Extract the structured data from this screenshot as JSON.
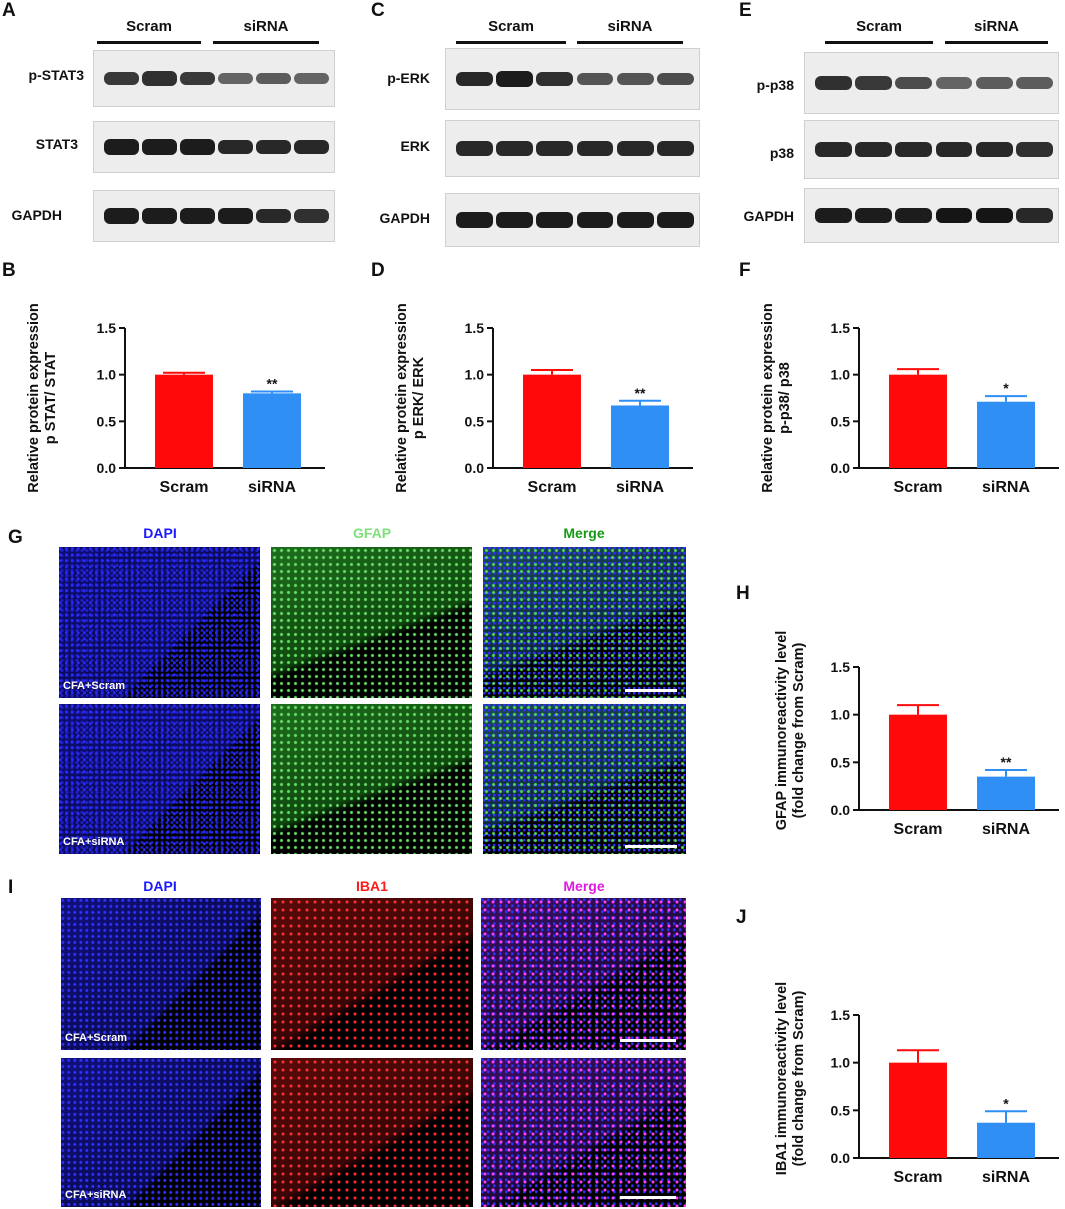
{
  "panel_letters": {
    "A": "A",
    "B": "B",
    "C": "C",
    "D": "D",
    "E": "E",
    "F": "F",
    "G": "G",
    "H": "H",
    "I": "I",
    "J": "J"
  },
  "groups": {
    "scram": "Scram",
    "sirna": "siRNA"
  },
  "blots": {
    "A": {
      "labels": [
        "p-STAT3",
        "STAT3",
        "GAPDH"
      ],
      "intensity": [
        [
          0.75,
          0.8,
          0.75,
          0.5,
          0.55,
          0.5
        ],
        [
          0.9,
          0.9,
          0.9,
          0.85,
          0.85,
          0.85
        ],
        [
          0.9,
          0.9,
          0.9,
          0.9,
          0.85,
          0.8
        ]
      ]
    },
    "C": {
      "labels": [
        "p-ERK",
        "ERK",
        "GAPDH"
      ],
      "intensity": [
        [
          0.85,
          0.9,
          0.8,
          0.6,
          0.6,
          0.65
        ],
        [
          0.85,
          0.85,
          0.85,
          0.85,
          0.85,
          0.85
        ],
        [
          0.9,
          0.9,
          0.9,
          0.9,
          0.9,
          0.9
        ]
      ]
    },
    "E": {
      "labels": [
        "p-p38",
        "p38",
        "GAPDH"
      ],
      "intensity": [
        [
          0.8,
          0.75,
          0.65,
          0.5,
          0.55,
          0.55
        ],
        [
          0.85,
          0.85,
          0.85,
          0.85,
          0.85,
          0.8
        ],
        [
          0.9,
          0.9,
          0.9,
          0.95,
          0.95,
          0.85
        ]
      ]
    }
  },
  "micro_headers": {
    "G": {
      "dapi": "DAPI",
      "marker": "GFAP",
      "merge": "Merge"
    },
    "I": {
      "dapi": "DAPI",
      "marker": "IBA1",
      "merge": "Merge"
    }
  },
  "micro_captions": {
    "scram": "CFA+Scram",
    "sirna": "CFA+siRNA"
  },
  "colors": {
    "scram": "#ff0a0a",
    "sirna": "#2f8ff5",
    "dapi": "#1a1aff",
    "gfap": "#7de07a",
    "merge_gfap": "#159a15",
    "iba1": "#ff1a1a",
    "merge_iba1": "#e01ae0"
  },
  "chart_data": [
    {
      "panel": "B",
      "type": "bar",
      "categories": [
        "Scram",
        "siRNA"
      ],
      "values": [
        1.0,
        0.8
      ],
      "errors": [
        0.02,
        0.02
      ],
      "sig": [
        "",
        "**"
      ],
      "ylabel": [
        "Relative protein expression",
        "p STAT/ STAT"
      ],
      "ylim": [
        0,
        1.5
      ],
      "yticks": [
        "0.0",
        "0.5",
        "1.0",
        "1.5"
      ]
    },
    {
      "panel": "D",
      "type": "bar",
      "categories": [
        "Scram",
        "siRNA"
      ],
      "values": [
        1.0,
        0.67
      ],
      "errors": [
        0.05,
        0.05
      ],
      "sig": [
        "",
        "**"
      ],
      "ylabel": [
        "Relative protein expression",
        "p ERK/ ERK"
      ],
      "ylim": [
        0,
        1.5
      ],
      "yticks": [
        "0.0",
        "0.5",
        "1.0",
        "1.5"
      ]
    },
    {
      "panel": "F",
      "type": "bar",
      "categories": [
        "Scram",
        "siRNA"
      ],
      "values": [
        1.0,
        0.71
      ],
      "errors": [
        0.06,
        0.06
      ],
      "sig": [
        "",
        "*"
      ],
      "ylabel": [
        "Relative protein expression",
        "p-p38/ p38"
      ],
      "ylim": [
        0,
        1.5
      ],
      "yticks": [
        "0.0",
        "0.5",
        "1.0",
        "1.5"
      ]
    },
    {
      "panel": "H",
      "type": "bar",
      "categories": [
        "Scram",
        "siRNA"
      ],
      "values": [
        1.0,
        0.35
      ],
      "errors": [
        0.1,
        0.07
      ],
      "sig": [
        "",
        "**"
      ],
      "ylabel": [
        "GFAP immunoreactivity level",
        "(fold change from Scram)"
      ],
      "ylim": [
        0,
        1.5
      ],
      "yticks": [
        "0.0",
        "0.5",
        "1.0",
        "1.5"
      ]
    },
    {
      "panel": "J",
      "type": "bar",
      "categories": [
        "Scram",
        "siRNA"
      ],
      "values": [
        1.0,
        0.37
      ],
      "errors": [
        0.13,
        0.12
      ],
      "sig": [
        "",
        "*"
      ],
      "ylabel": [
        "IBA1 immunoreactivity level",
        "(fold change from Scram)"
      ],
      "ylim": [
        0,
        1.5
      ],
      "yticks": [
        "0.0",
        "0.5",
        "1.0",
        "1.5"
      ]
    }
  ]
}
